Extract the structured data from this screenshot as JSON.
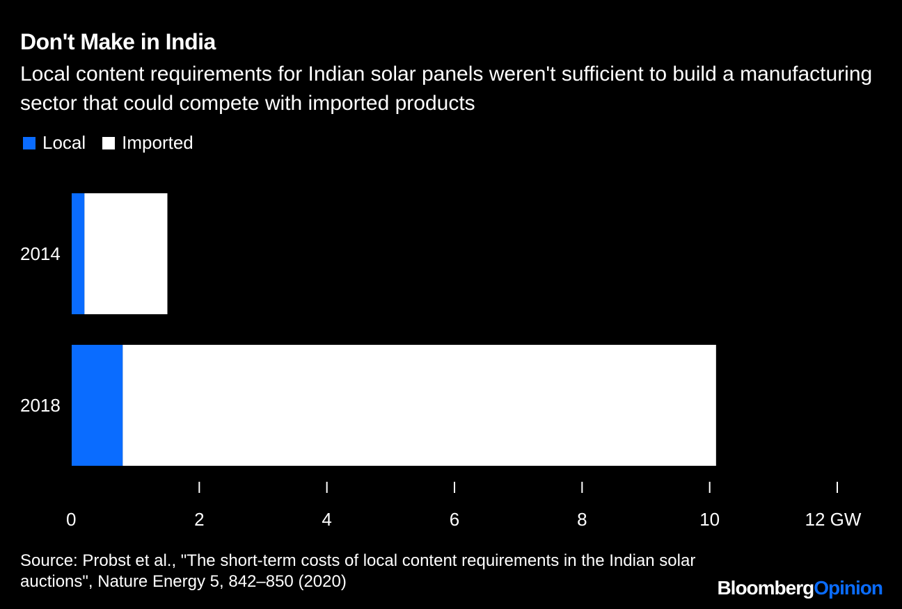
{
  "colors": {
    "background": "#000000",
    "local": "#0a6cff",
    "imported": "#ffffff",
    "text": "#ffffff"
  },
  "brand": {
    "part1": "Bloomberg",
    "part2": "Opinion"
  },
  "source": "Source: Probst et al., \"The short-term costs of local content requirements in the Indian solar auctions\", Nature Energy 5, 842–850 (2020)",
  "chart_data": {
    "type": "bar",
    "orientation": "horizontal",
    "stacked": true,
    "title": "Don't Make in India",
    "subtitle": "Local content requirements for Indian solar panels weren't sufficient to build a manufacturing sector that could compete with imported products",
    "categories": [
      "2014",
      "2018"
    ],
    "series": [
      {
        "name": "Local",
        "color": "#0a6cff",
        "values": [
          0.2,
          0.8
        ]
      },
      {
        "name": "Imported",
        "color": "#ffffff",
        "values": [
          1.3,
          9.3
        ]
      }
    ],
    "xlim": [
      0,
      12
    ],
    "xticks": [
      0,
      2,
      4,
      6,
      8,
      10,
      12
    ],
    "xticklabels": [
      "0",
      "2",
      "4",
      "6",
      "8",
      "10",
      "12 GW"
    ],
    "legend_position": "top-left",
    "grid": false
  }
}
